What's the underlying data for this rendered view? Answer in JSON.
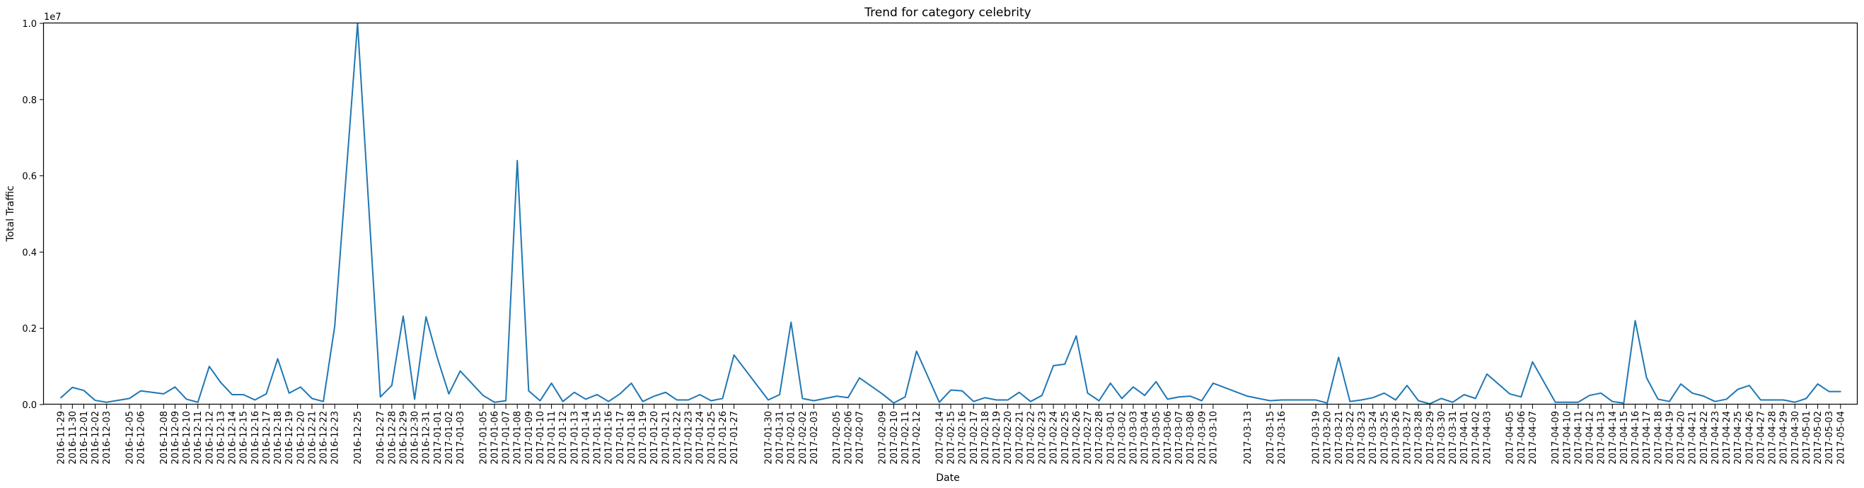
{
  "chart_data": {
    "type": "line",
    "title": "Trend for category celebrity",
    "xlabel": "Date",
    "ylabel": "Total Traffic",
    "y_multiplier_label": "1e7",
    "ylim": [
      0,
      1.0
    ],
    "y_ticks": [
      "0.0",
      "0.2",
      "0.4",
      "0.6",
      "0.8",
      "1.0"
    ],
    "grid": false,
    "legend": "none",
    "line_color": "#1f77b4",
    "x": [
      "2016-11-29",
      "2016-11-30",
      "2016-12-01",
      "2016-12-02",
      "2016-12-03",
      "2016-12-05",
      "2016-12-06",
      "2016-12-08",
      "2016-12-09",
      "2016-12-10",
      "2016-12-11",
      "2016-12-12",
      "2016-12-13",
      "2016-12-14",
      "2016-12-15",
      "2016-12-16",
      "2016-12-17",
      "2016-12-18",
      "2016-12-19",
      "2016-12-20",
      "2016-12-21",
      "2016-12-22",
      "2016-12-23",
      "2016-12-25",
      "2016-12-27",
      "2016-12-28",
      "2016-12-29",
      "2016-12-30",
      "2016-12-31",
      "2017-01-01",
      "2017-01-02",
      "2017-01-03",
      "2017-01-05",
      "2017-01-06",
      "2017-01-07",
      "2017-01-08",
      "2017-01-09",
      "2017-01-10",
      "2017-01-11",
      "2017-01-12",
      "2017-01-13",
      "2017-01-14",
      "2017-01-15",
      "2017-01-16",
      "2017-01-17",
      "2017-01-18",
      "2017-01-19",
      "2017-01-20",
      "2017-01-21",
      "2017-01-22",
      "2017-01-23",
      "2017-01-24",
      "2017-01-25",
      "2017-01-26",
      "2017-01-27",
      "2017-01-30",
      "2017-01-31",
      "2017-02-01",
      "2017-02-02",
      "2017-02-03",
      "2017-02-05",
      "2017-02-06",
      "2017-02-07",
      "2017-02-09",
      "2017-02-10",
      "2017-02-11",
      "2017-02-12",
      "2017-02-14",
      "2017-02-15",
      "2017-02-16",
      "2017-02-17",
      "2017-02-18",
      "2017-02-19",
      "2017-02-20",
      "2017-02-21",
      "2017-02-22",
      "2017-02-23",
      "2017-02-24",
      "2017-02-25",
      "2017-02-26",
      "2017-02-27",
      "2017-02-28",
      "2017-03-01",
      "2017-03-02",
      "2017-03-03",
      "2017-03-04",
      "2017-03-05",
      "2017-03-06",
      "2017-03-07",
      "2017-03-08",
      "2017-03-09",
      "2017-03-10",
      "2017-03-13",
      "2017-03-15",
      "2017-03-16",
      "2017-03-19",
      "2017-03-20",
      "2017-03-21",
      "2017-03-22",
      "2017-03-23",
      "2017-03-24",
      "2017-03-25",
      "2017-03-26",
      "2017-03-27",
      "2017-03-28",
      "2017-03-29",
      "2017-03-30",
      "2017-03-31",
      "2017-04-01",
      "2017-04-02",
      "2017-04-03",
      "2017-04-05",
      "2017-04-06",
      "2017-04-07",
      "2017-04-09",
      "2017-04-10",
      "2017-04-11",
      "2017-04-12",
      "2017-04-13",
      "2017-04-14",
      "2017-04-15",
      "2017-04-16",
      "2017-04-17",
      "2017-04-18",
      "2017-04-19",
      "2017-04-20",
      "2017-04-21",
      "2017-04-22",
      "2017-04-23",
      "2017-04-24",
      "2017-04-25",
      "2017-04-26",
      "2017-04-27",
      "2017-04-28",
      "2017-04-29",
      "2017-04-30",
      "2017-05-01",
      "2017-05-02",
      "2017-05-03",
      "2017-05-04"
    ],
    "y": [
      0.018,
      0.045,
      0.037,
      0.011,
      0.006,
      0.016,
      0.036,
      0.028,
      0.046,
      0.014,
      0.006,
      0.1,
      0.058,
      0.026,
      0.026,
      0.012,
      0.028,
      0.12,
      0.03,
      0.046,
      0.016,
      0.008,
      0.206,
      1.0,
      0.02,
      0.05,
      0.232,
      0.014,
      0.23,
      0.122,
      0.028,
      0.088,
      0.024,
      0.006,
      0.01,
      0.64,
      0.036,
      0.01,
      0.056,
      0.008,
      0.032,
      0.014,
      0.026,
      0.008,
      0.028,
      0.056,
      0.008,
      0.022,
      0.032,
      0.012,
      0.012,
      0.026,
      0.01,
      0.016,
      0.13,
      0.012,
      0.026,
      0.216,
      0.016,
      0.01,
      0.022,
      0.018,
      0.07,
      0.028,
      0.004,
      0.02,
      0.14,
      0.006,
      0.038,
      0.036,
      0.008,
      0.018,
      0.012,
      0.012,
      0.032,
      0.008,
      0.024,
      0.102,
      0.106,
      0.18,
      0.03,
      0.01,
      0.056,
      0.016,
      0.046,
      0.024,
      0.06,
      0.014,
      0.02,
      0.022,
      0.01,
      0.056,
      0.022,
      0.01,
      0.012,
      0.012,
      0.004,
      0.124,
      0.008,
      0.012,
      0.018,
      0.03,
      0.012,
      0.05,
      0.01,
      0.002,
      0.016,
      0.006,
      0.026,
      0.016,
      0.08,
      0.028,
      0.02,
      0.112,
      0.006,
      0.006,
      0.006,
      0.024,
      0.03,
      0.008,
      0.004,
      0.22,
      0.07,
      0.014,
      0.008,
      0.054,
      0.03,
      0.022,
      0.008,
      0.014,
      0.04,
      0.05,
      0.012,
      0.012,
      0.012,
      0.006,
      0.016,
      0.054,
      0.034,
      0.034
    ]
  }
}
